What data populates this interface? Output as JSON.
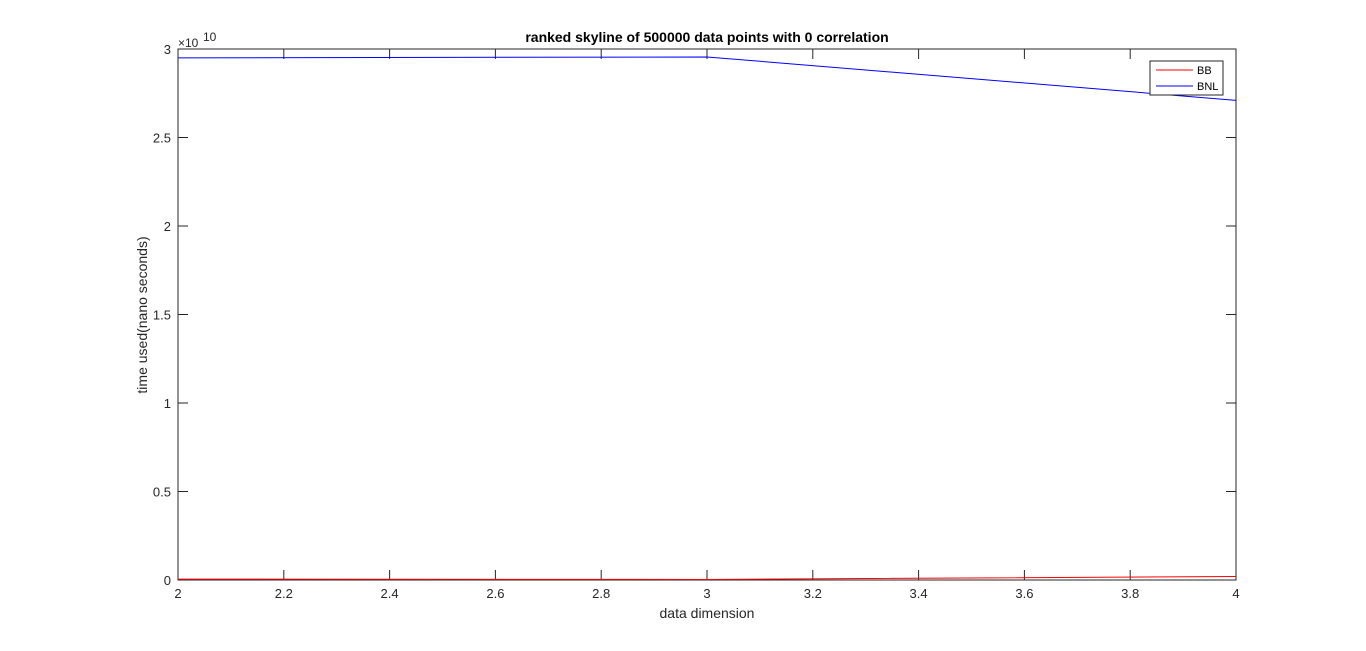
{
  "chart_data": {
    "type": "line",
    "title": "ranked skyline of 500000 data points with 0 correlation",
    "xlabel": "data dimension",
    "ylabel": "time used(nano seconds)",
    "xlim": [
      2,
      4
    ],
    "ylim": [
      0,
      30000000000
    ],
    "x_ticks": [
      "2",
      "2.2",
      "2.4",
      "2.6",
      "2.8",
      "3",
      "3.2",
      "3.4",
      "3.6",
      "3.8",
      "4"
    ],
    "y_ticks": [
      "0",
      "0.5",
      "1",
      "1.5",
      "2",
      "2.5",
      "3"
    ],
    "y_exponent_base": "×10",
    "y_exponent_power": "10",
    "grid": false,
    "legend_placement": "top-right",
    "x": [
      2,
      3,
      4
    ],
    "series": [
      {
        "name": "BB",
        "color": "#ff0000",
        "values": [
          50000000,
          30000000,
          200000000
        ]
      },
      {
        "name": "BNL",
        "color": "#0000ff",
        "values": [
          29500000000,
          29550000000,
          27100000000
        ]
      }
    ]
  }
}
